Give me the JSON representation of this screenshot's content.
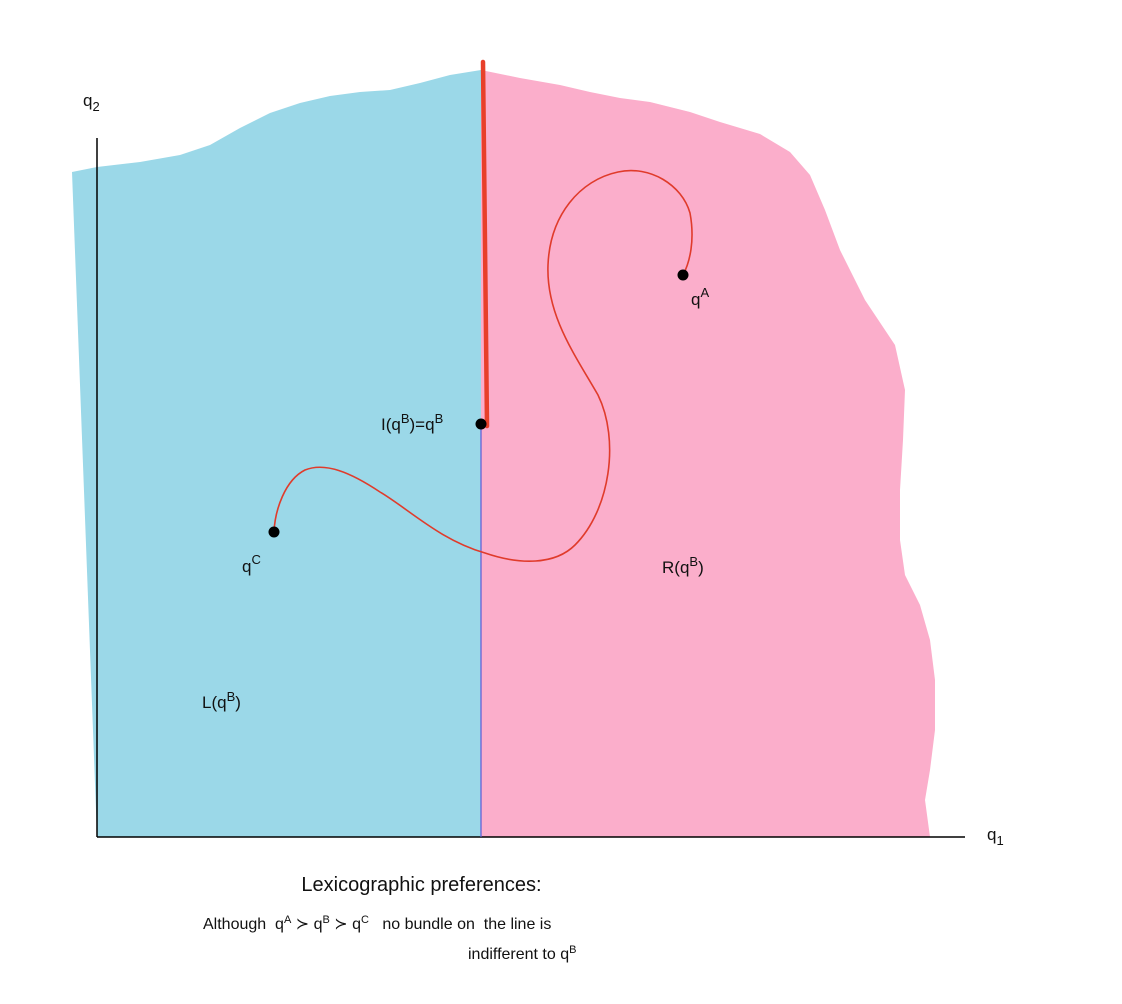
{
  "axes": {
    "x_label": "q",
    "x_label_sub": "1",
    "y_label": "q",
    "y_label_sub": "2"
  },
  "regions": {
    "left_label": "L(q",
    "left_label_sup": "B",
    "left_label_end": ")",
    "right_label": "R(q",
    "right_label_sup": "B",
    "right_label_end": ")"
  },
  "points": {
    "a": {
      "base": "q",
      "sup": "A"
    },
    "b": {
      "text": "I(q",
      "sup1": "B",
      "mid": ")=q",
      "sup2": "B"
    },
    "c": {
      "base": "q",
      "sup": "C"
    }
  },
  "caption": {
    "title": "Lexicographic preferences:",
    "line1_start": "Although  q",
    "line1_sup_a": "A",
    "line1_mid1": " ≻ q",
    "line1_sup_b": "B",
    "line1_mid2": " ≻ q",
    "line1_sup_c": "C",
    "line1_end": "   no bundle on  the line is",
    "line2_start": "indifferent to q",
    "line2_sup": "B"
  },
  "colors": {
    "left_region": "#9bd8e8",
    "right_region": "#fbaecb",
    "vertical_line": "#e8402a",
    "curve": "#e03b2b",
    "divider": "#5a5ad8",
    "points": "#000000"
  }
}
